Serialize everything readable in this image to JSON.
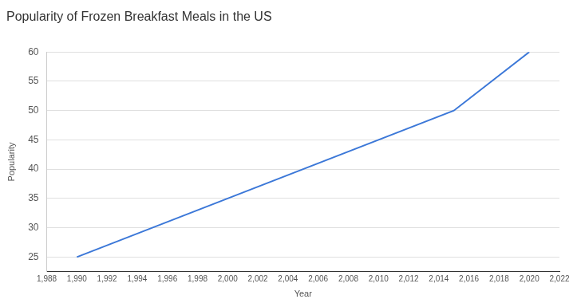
{
  "chart_data": {
    "type": "line",
    "title": "Popularity of Frozen Breakfast Meals in the US",
    "x_label": "Year",
    "y_label": "Popularity",
    "x": [
      1990,
      2015,
      2020
    ],
    "values": [
      25,
      50,
      60
    ],
    "color": "#3c78d8",
    "xlim": [
      1988,
      2022
    ],
    "xticks": [
      {
        "value": 1988,
        "label": "1,988"
      },
      {
        "value": 1990,
        "label": "1,990"
      },
      {
        "value": 1992,
        "label": "1,992"
      },
      {
        "value": 1994,
        "label": "1,994"
      },
      {
        "value": 1996,
        "label": "1,996"
      },
      {
        "value": 1998,
        "label": "1,998"
      },
      {
        "value": 2000,
        "label": "2,000"
      },
      {
        "value": 2002,
        "label": "2,002"
      },
      {
        "value": 2004,
        "label": "2,004"
      },
      {
        "value": 2006,
        "label": "2,006"
      },
      {
        "value": 2008,
        "label": "2,008"
      },
      {
        "value": 2010,
        "label": "2,010"
      },
      {
        "value": 2012,
        "label": "2,012"
      },
      {
        "value": 2014,
        "label": "2,014"
      },
      {
        "value": 2016,
        "label": "2,016"
      },
      {
        "value": 2018,
        "label": "2,018"
      },
      {
        "value": 2020,
        "label": "2,020"
      },
      {
        "value": 2022,
        "label": "2,022"
      }
    ],
    "ylim": [
      22.5,
      60
    ],
    "yticks": [
      25,
      30,
      35,
      40,
      45,
      50,
      55,
      60
    ],
    "grid": true
  }
}
